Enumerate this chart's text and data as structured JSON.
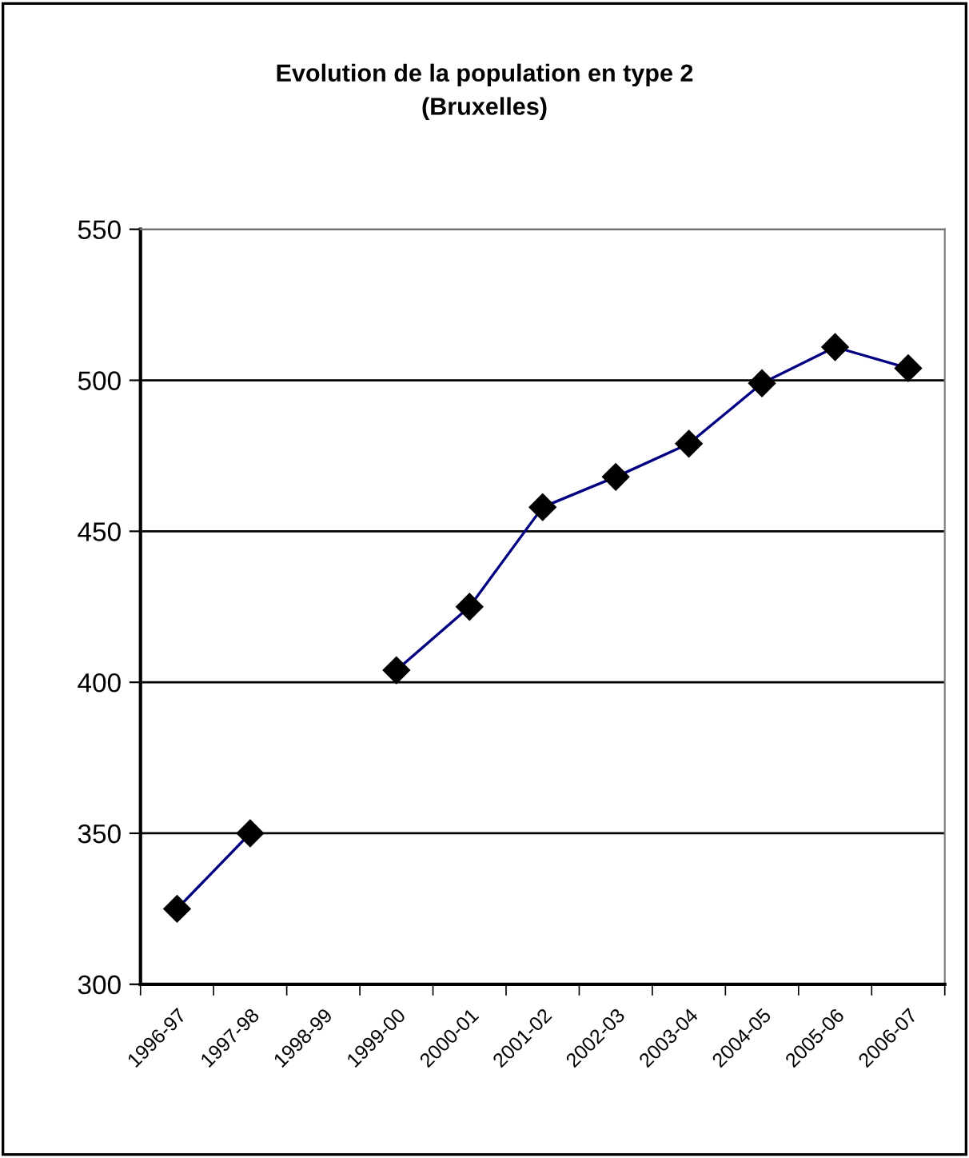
{
  "chart_data": {
    "type": "line",
    "title": "Evolution de la population en type 2\n(Bruxelles)",
    "categories": [
      "1996-97",
      "1997-98",
      "1998-99",
      "1999-00",
      "2000-01",
      "2001-02",
      "2002-03",
      "2003-04",
      "2004-05",
      "2005-06",
      "2006-07"
    ],
    "series": [
      {
        "color": "#000080",
        "values": [
          325,
          350,
          null,
          404,
          425,
          458,
          468,
          479,
          499,
          511,
          504
        ]
      }
    ],
    "ylim": [
      300,
      550
    ],
    "yticks": [
      300,
      350,
      400,
      450,
      500,
      550
    ],
    "grid": "y",
    "marker": "diamond",
    "line_style": "solid",
    "legend": false
  }
}
